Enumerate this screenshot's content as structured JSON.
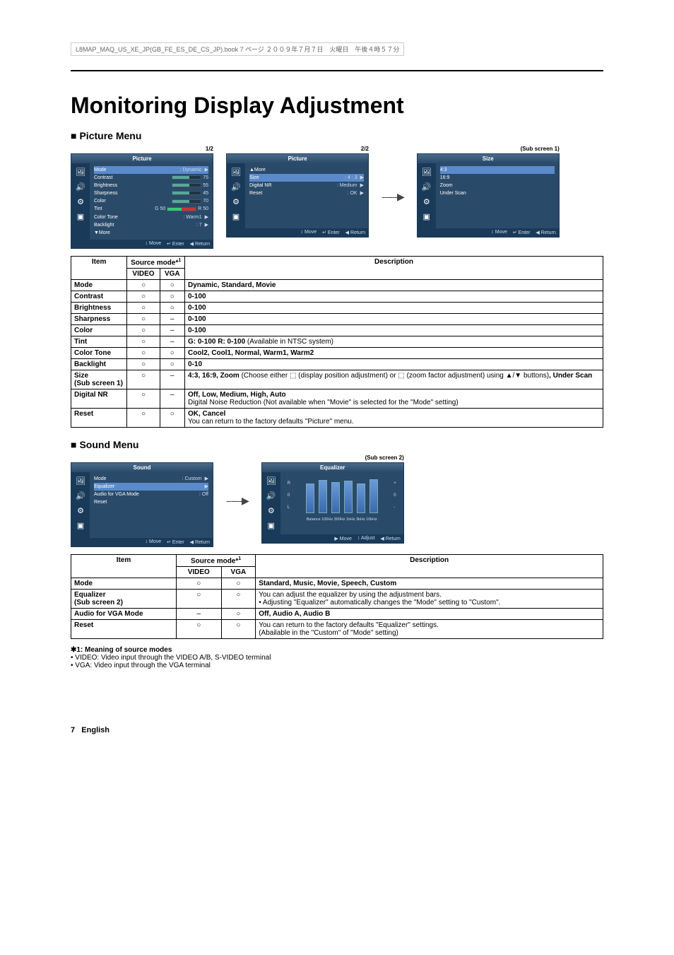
{
  "header_line": "L8MAP_MAQ_US_XE_JP(GB_FE_ES_DE_CS_JP).book  7 ページ  ２００９年７月７日　火曜日　午後４時５７分",
  "title": "Monitoring Display Adjustment",
  "section_picture": "Picture Menu",
  "section_sound": "Sound Menu",
  "osd": {
    "page_1": "1/2",
    "page_2": "2/2",
    "sub1": "(Sub screen 1)",
    "sub2": "(Sub screen 2)",
    "picture_title": "Picture",
    "size_title": "Size",
    "sound_title": "Sound",
    "equalizer_title": "Equalizer",
    "foot_move": "Move",
    "foot_enter": "Enter",
    "foot_return": "Return",
    "foot_adjust": "Adjust",
    "pic1": {
      "mode": "Mode",
      "mode_v": ": Dynamic",
      "contrast": "Contrast",
      "contrast_v": "75",
      "brightness": "Brightness",
      "brightness_v": "55",
      "sharpness": "Sharpness",
      "sharpness_v": "45",
      "color": "Color",
      "color_v": "70",
      "tint": "Tint",
      "tint_v": "50",
      "tint_g": "G 50",
      "tint_r": "R",
      "colortone": "Color Tone",
      "colortone_v": ": Warm1",
      "backlight": "Backlight",
      "backlight_v": ": 7",
      "more": "▼More"
    },
    "pic2": {
      "more": "▲More",
      "size": "Size",
      "size_v": ": 4 : 3",
      "digitalnr": "Digital NR",
      "digitalnr_v": ": Medium",
      "reset": "Reset",
      "reset_v": ": OK"
    },
    "size_items": {
      "a": "4:3",
      "b": "16:9",
      "c": "Zoom",
      "d": "Under Scan"
    },
    "sound": {
      "mode": "Mode",
      "mode_v": ": Custom",
      "equalizer": "Equalizer",
      "audio_vga": "Audio for VGA Mode",
      "audio_vga_v": ": Off",
      "reset": "Reset"
    },
    "eq_freq": "Balance 100Hz 300Hz 1kHz 3kHz 10kHz"
  },
  "table_header": {
    "item": "Item",
    "source": "Source mode*",
    "source_sup": "1",
    "video": "VIDEO",
    "vga": "VGA",
    "desc": "Description"
  },
  "circle": "○",
  "dash": "–",
  "picture_rows": [
    {
      "item": "Mode",
      "video": "○",
      "vga": "○",
      "desc": "<b>Dynamic, Standard, Movie</b>"
    },
    {
      "item": "Contrast",
      "video": "○",
      "vga": "○",
      "desc": "<b>0-100</b>"
    },
    {
      "item": "Brightness",
      "video": "○",
      "vga": "○",
      "desc": "<b>0-100</b>"
    },
    {
      "item": "Sharpness",
      "video": "○",
      "vga": "–",
      "desc": "<b>0-100</b>"
    },
    {
      "item": "Color",
      "video": "○",
      "vga": "–",
      "desc": "<b>0-100</b>"
    },
    {
      "item": "Tint",
      "video": "○",
      "vga": "–",
      "desc": "<b>G: 0-100 R: 0-100</b> (Available in NTSC system)"
    },
    {
      "item": "Color Tone",
      "video": "○",
      "vga": "○",
      "desc": "<b>Cool2, Cool1, Normal, Warm1, Warm2</b>"
    },
    {
      "item": "Backlight",
      "video": "○",
      "vga": "○",
      "desc": "<b>0-10</b>"
    },
    {
      "item": "Size<br>(Sub screen 1)",
      "video": "○",
      "vga": "–",
      "desc": "<b>4:3, 16:9, Zoom</b> (Choose either ⬚ (display position adjustment) or ⬚ (zoom factor adjustment) using ▲/▼ buttons)<b>, Under Scan</b>"
    },
    {
      "item": "Digital NR",
      "video": "○",
      "vga": "–",
      "desc": "<b>Off, Low, Medium, High, Auto</b><br>Digital Noise Reduction (Not available when \"Movie\" is selected for the \"Mode\" setting)"
    },
    {
      "item": "Reset",
      "video": "○",
      "vga": "○",
      "desc": "<b>OK, Cancel</b><br>You can return to the factory defaults \"Picture\" menu."
    }
  ],
  "sound_rows": [
    {
      "item": "Mode",
      "video": "○",
      "vga": "○",
      "desc": "<b>Standard, Music, Movie, Speech, Custom</b>"
    },
    {
      "item": "Equalizer<br>(Sub screen 2)",
      "video": "○",
      "vga": "○",
      "desc": "You can adjust the equalizer by using the adjustment bars.<br>• Adjusting \"Equalizer\" automatically changes the \"Mode\" setting to \"Custom\"."
    },
    {
      "item": "Audio for VGA Mode",
      "video": "–",
      "vga": "○",
      "desc": "<b>Off, Audio A, Audio B</b>"
    },
    {
      "item": "Reset",
      "video": "○",
      "vga": "○",
      "desc": "You can return to the factory defaults \"Equalizer\" settings.<br>(Abailable in the \"Custom\" of \"Mode\" setting)"
    }
  ],
  "footnote": {
    "title": "✱1: Meaning of source modes",
    "line1": "• VIDEO: Video input through the VIDEO A/B, S-VIDEO terminal",
    "line2": "• VGA: Video input through the VGA terminal"
  },
  "page_num": "7",
  "lang": "English"
}
